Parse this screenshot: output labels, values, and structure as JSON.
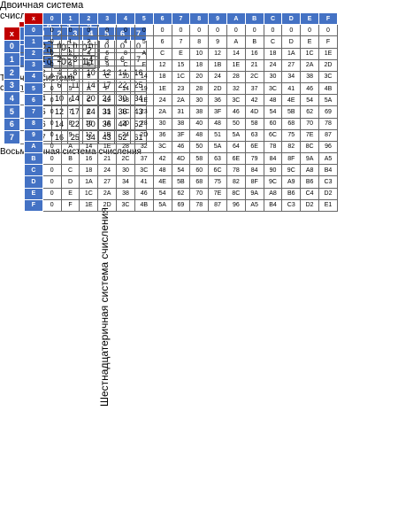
{
  "tables": [
    {
      "title": "Двоичная система счисления",
      "corner": "x",
      "header": [
        "0",
        "1"
      ],
      "rows": [
        [
          "0",
          "0",
          "0"
        ],
        [
          "1",
          "0",
          "1"
        ]
      ]
    },
    {
      "title": "Троичная система счисления",
      "corner": "x",
      "header": [
        "0",
        "1",
        "2"
      ],
      "rows": [
        [
          "0",
          "0",
          "0",
          "0"
        ],
        [
          "1",
          "0",
          "1",
          "2"
        ],
        [
          "2",
          "0",
          "2",
          "11"
        ]
      ]
    },
    {
      "title": "Восьмеричная система счисления",
      "corner": "x",
      "header": [
        "0",
        "1",
        "2",
        "3",
        "4",
        "5",
        "6",
        "7"
      ],
      "rows": [
        [
          "0",
          "0",
          "0",
          "0",
          "0",
          "0",
          "0",
          "0",
          "0"
        ],
        [
          "1",
          "0",
          "1",
          "2",
          "3",
          "4",
          "5",
          "6",
          "7"
        ],
        [
          "2",
          "0",
          "2",
          "4",
          "6",
          "10",
          "12",
          "14",
          "16"
        ],
        [
          "3",
          "0",
          "3",
          "6",
          "11",
          "14",
          "17",
          "22",
          "25"
        ],
        [
          "4",
          "0",
          "4",
          "10",
          "14",
          "20",
          "24",
          "30",
          "34"
        ],
        [
          "5",
          "0",
          "5",
          "12",
          "17",
          "24",
          "31",
          "36",
          "43"
        ],
        [
          "6",
          "0",
          "6",
          "14",
          "22",
          "30",
          "36",
          "44",
          "52"
        ],
        [
          "7",
          "0",
          "7",
          "16",
          "25",
          "34",
          "43",
          "52",
          "61"
        ]
      ]
    },
    {
      "title": "Шестнадцатеричная система счисления",
      "corner": "x",
      "header": [
        "0",
        "1",
        "2",
        "3",
        "4",
        "5",
        "6",
        "7",
        "8",
        "9",
        "A",
        "B",
        "C",
        "D",
        "E",
        "F"
      ],
      "rows": [
        [
          "0",
          "0",
          "0",
          "0",
          "0",
          "0",
          "0",
          "0",
          "0",
          "0",
          "0",
          "0",
          "0",
          "0",
          "0",
          "0",
          "0"
        ],
        [
          "1",
          "0",
          "1",
          "2",
          "3",
          "4",
          "5",
          "6",
          "7",
          "8",
          "9",
          "A",
          "B",
          "C",
          "D",
          "E",
          "F"
        ],
        [
          "2",
          "0",
          "2",
          "4",
          "6",
          "8",
          "A",
          "C",
          "E",
          "10",
          "12",
          "14",
          "16",
          "18",
          "1A",
          "1C",
          "1E"
        ],
        [
          "3",
          "0",
          "3",
          "6",
          "9",
          "C",
          "F",
          "12",
          "15",
          "18",
          "1B",
          "1E",
          "21",
          "24",
          "27",
          "2A",
          "2D"
        ],
        [
          "4",
          "0",
          "4",
          "8",
          "C",
          "10",
          "14",
          "18",
          "1C",
          "20",
          "24",
          "28",
          "2C",
          "30",
          "34",
          "38",
          "3C"
        ],
        [
          "5",
          "0",
          "5",
          "A",
          "F",
          "14",
          "19",
          "1E",
          "23",
          "28",
          "2D",
          "32",
          "37",
          "3C",
          "41",
          "46",
          "4B"
        ],
        [
          "6",
          "0",
          "6",
          "C",
          "12",
          "18",
          "1E",
          "24",
          "2A",
          "30",
          "36",
          "3C",
          "42",
          "48",
          "4E",
          "54",
          "5A"
        ],
        [
          "7",
          "0",
          "7",
          "E",
          "15",
          "1C",
          "23",
          "2A",
          "31",
          "38",
          "3F",
          "46",
          "4D",
          "54",
          "5B",
          "62",
          "69"
        ],
        [
          "8",
          "0",
          "8",
          "10",
          "18",
          "20",
          "28",
          "30",
          "38",
          "40",
          "48",
          "50",
          "58",
          "60",
          "68",
          "70",
          "78"
        ],
        [
          "9",
          "0",
          "9",
          "12",
          "1B",
          "24",
          "2D",
          "36",
          "3F",
          "48",
          "51",
          "5A",
          "63",
          "6C",
          "75",
          "7E",
          "87"
        ],
        [
          "A",
          "0",
          "A",
          "14",
          "1E",
          "28",
          "32",
          "3C",
          "46",
          "50",
          "5A",
          "64",
          "6E",
          "78",
          "82",
          "8C",
          "96"
        ],
        [
          "B",
          "0",
          "B",
          "16",
          "21",
          "2C",
          "37",
          "42",
          "4D",
          "58",
          "63",
          "6E",
          "79",
          "84",
          "8F",
          "9A",
          "A5"
        ],
        [
          "C",
          "0",
          "C",
          "18",
          "24",
          "30",
          "3C",
          "48",
          "54",
          "60",
          "6C",
          "78",
          "84",
          "90",
          "9C",
          "A8",
          "B4"
        ],
        [
          "D",
          "0",
          "D",
          "1A",
          "27",
          "34",
          "41",
          "4E",
          "5B",
          "68",
          "75",
          "82",
          "8F",
          "9C",
          "A9",
          "B6",
          "C3"
        ],
        [
          "E",
          "0",
          "E",
          "1C",
          "2A",
          "38",
          "46",
          "54",
          "62",
          "70",
          "7E",
          "8C",
          "9A",
          "A8",
          "B6",
          "C4",
          "D2"
        ],
        [
          "F",
          "0",
          "F",
          "1E",
          "2D",
          "3C",
          "4B",
          "5A",
          "69",
          "78",
          "87",
          "96",
          "A5",
          "B4",
          "C3",
          "D2",
          "E1"
        ]
      ]
    }
  ]
}
